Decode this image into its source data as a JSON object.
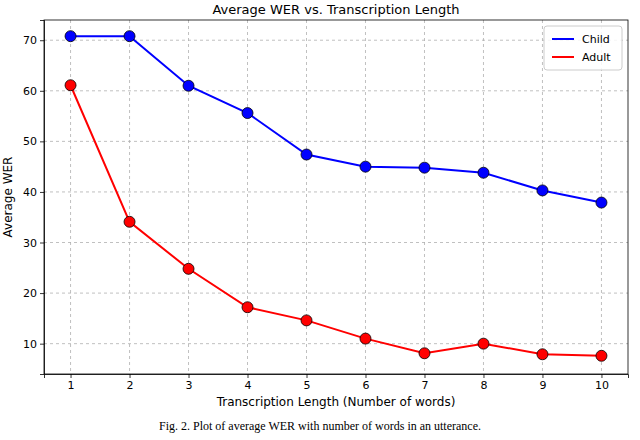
{
  "chart_data": {
    "type": "line",
    "title": "Average WER vs. Transcription Length",
    "x_label": "Transcription Length (Number of words)",
    "y_label": "Average WER",
    "annotations": [
      "Fig. 2. Plot of average WER with number of words in an utterance."
    ],
    "x": [
      1,
      2,
      3,
      4,
      5,
      6,
      7,
      8,
      9,
      10
    ],
    "series": [
      {
        "name": "Child",
        "color": "#0000ff",
        "marker": "circle",
        "line_style": "solid",
        "values": [
          70.8,
          70.8,
          61.0,
          55.6,
          47.4,
          45.0,
          44.8,
          43.8,
          40.3,
          37.9
        ]
      },
      {
        "name": "Adult",
        "color": "#ff0000",
        "marker": "circle",
        "line_style": "solid",
        "values": [
          61.1,
          34.1,
          24.8,
          17.2,
          14.6,
          11.0,
          8.1,
          10.0,
          7.9,
          7.6
        ]
      }
    ],
    "xlim": [
      0.55,
      10.45
    ],
    "xticks": [
      1,
      2,
      3,
      4,
      5,
      6,
      7,
      8,
      9,
      10
    ],
    "ylim": [
      4,
      74
    ],
    "yticks": [
      10,
      20,
      30,
      40,
      50,
      60,
      70
    ],
    "grid": true,
    "legend": "upper right"
  }
}
